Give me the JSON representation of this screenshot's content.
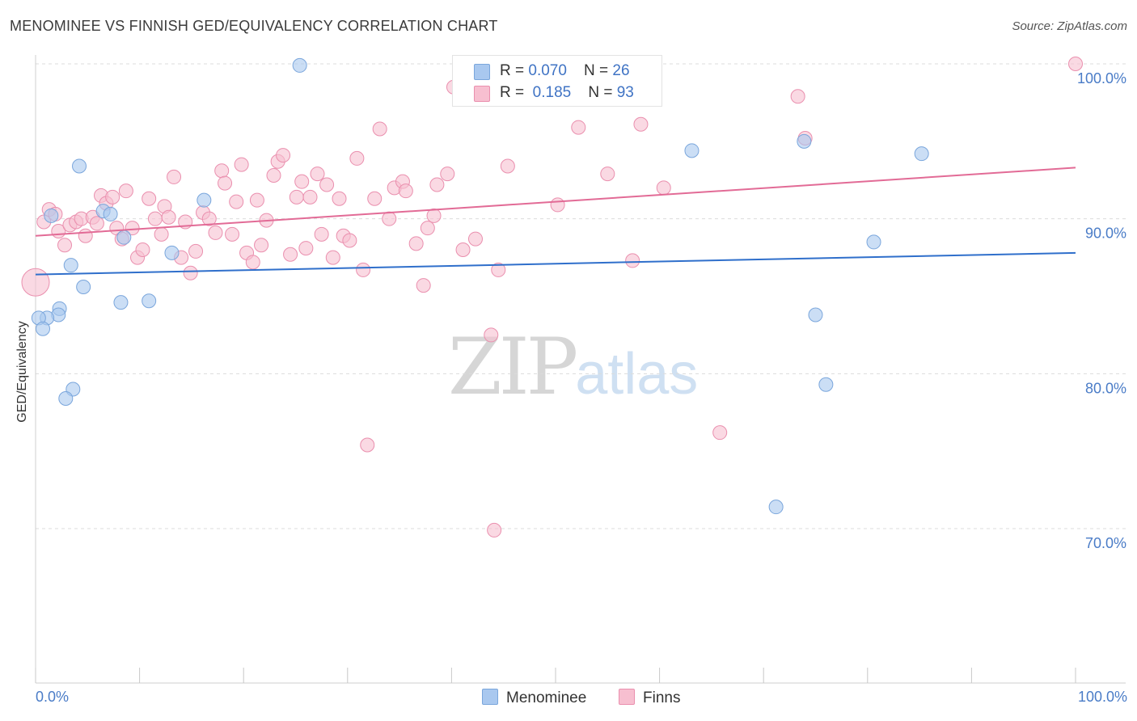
{
  "chart_data": {
    "type": "scatter",
    "title": "MENOMINEE VS FINNISH GED/EQUIVALENCY CORRELATION CHART",
    "source": "Source: ZipAtlas.com",
    "xlabel": "",
    "ylabel": "GED/Equivalency",
    "xlim": [
      0,
      100
    ],
    "ylim": [
      60,
      101.5
    ],
    "x_tick_labels": {
      "min": "0.0%",
      "max": "100.0%"
    },
    "y_ticks": [
      {
        "value": 100,
        "label": "100.0%"
      },
      {
        "value": 90,
        "label": "90.0%"
      },
      {
        "value": 80,
        "label": "80.0%"
      },
      {
        "value": 70,
        "label": "70.0%"
      }
    ],
    "grid": true,
    "watermark": {
      "zip": "ZIP",
      "atlas": "atlas"
    },
    "series": [
      {
        "name": "Menominee",
        "color": "#a9c8ef",
        "stroke": "#7aa6dc",
        "line_color": "#2f6fcb",
        "R": "0.070",
        "N": "26",
        "trend": [
          [
            0,
            86.4
          ],
          [
            100,
            87.8
          ]
        ],
        "points": [
          [
            25.4,
            99.9
          ],
          [
            4.2,
            93.4
          ],
          [
            16.2,
            91.2
          ],
          [
            6.5,
            90.5
          ],
          [
            7.2,
            90.3
          ],
          [
            1.5,
            90.2
          ],
          [
            8.5,
            88.8
          ],
          [
            13.1,
            87.8
          ],
          [
            3.4,
            87.0
          ],
          [
            4.6,
            85.6
          ],
          [
            8.2,
            84.6
          ],
          [
            10.9,
            84.7
          ],
          [
            2.3,
            84.2
          ],
          [
            2.2,
            83.8
          ],
          [
            1.1,
            83.6
          ],
          [
            0.3,
            83.6
          ],
          [
            0.7,
            82.9
          ],
          [
            3.6,
            79.0
          ],
          [
            2.9,
            78.4
          ],
          [
            63.1,
            94.4
          ],
          [
            73.9,
            95.0
          ],
          [
            85.2,
            94.2
          ],
          [
            80.6,
            88.5
          ],
          [
            75.0,
            83.8
          ],
          [
            76.0,
            79.3
          ],
          [
            71.2,
            71.4
          ]
        ]
      },
      {
        "name": "Finns",
        "color": "#f7bfd0",
        "stroke": "#ea8fae",
        "line_color": "#e26b96",
        "R": "0.185",
        "N": "93",
        "trend": [
          [
            0,
            88.9
          ],
          [
            100,
            93.3
          ]
        ],
        "points": [
          [
            0.0,
            85.9
          ],
          [
            1.3,
            90.6
          ],
          [
            1.9,
            90.3
          ],
          [
            0.8,
            89.8
          ],
          [
            2.2,
            89.2
          ],
          [
            2.8,
            88.3
          ],
          [
            3.3,
            89.6
          ],
          [
            3.9,
            89.8
          ],
          [
            4.4,
            90.0
          ],
          [
            4.8,
            88.9
          ],
          [
            5.5,
            90.1
          ],
          [
            5.9,
            89.7
          ],
          [
            6.3,
            91.5
          ],
          [
            6.8,
            91.0
          ],
          [
            7.4,
            91.4
          ],
          [
            7.8,
            89.4
          ],
          [
            8.3,
            88.7
          ],
          [
            8.7,
            91.8
          ],
          [
            9.3,
            89.4
          ],
          [
            9.8,
            87.5
          ],
          [
            10.3,
            88.0
          ],
          [
            10.9,
            91.3
          ],
          [
            11.5,
            90.0
          ],
          [
            12.1,
            89.0
          ],
          [
            12.4,
            90.8
          ],
          [
            12.8,
            90.1
          ],
          [
            13.3,
            92.7
          ],
          [
            14.0,
            87.5
          ],
          [
            14.4,
            89.8
          ],
          [
            14.9,
            86.5
          ],
          [
            15.4,
            87.9
          ],
          [
            16.1,
            90.4
          ],
          [
            16.7,
            90.0
          ],
          [
            17.3,
            89.1
          ],
          [
            17.9,
            93.1
          ],
          [
            18.2,
            92.3
          ],
          [
            18.9,
            89.0
          ],
          [
            19.3,
            91.1
          ],
          [
            19.8,
            93.5
          ],
          [
            20.3,
            87.8
          ],
          [
            20.9,
            87.2
          ],
          [
            21.3,
            91.2
          ],
          [
            21.7,
            88.3
          ],
          [
            22.2,
            89.9
          ],
          [
            22.9,
            92.8
          ],
          [
            23.3,
            93.7
          ],
          [
            23.8,
            94.1
          ],
          [
            24.5,
            87.7
          ],
          [
            25.1,
            91.4
          ],
          [
            25.6,
            92.4
          ],
          [
            26.0,
            88.1
          ],
          [
            26.4,
            91.4
          ],
          [
            27.1,
            92.9
          ],
          [
            27.5,
            89.0
          ],
          [
            28.0,
            92.2
          ],
          [
            28.6,
            87.5
          ],
          [
            29.2,
            91.3
          ],
          [
            29.6,
            88.9
          ],
          [
            30.2,
            88.6
          ],
          [
            30.9,
            93.9
          ],
          [
            31.5,
            86.7
          ],
          [
            31.9,
            75.4
          ],
          [
            32.6,
            91.3
          ],
          [
            33.1,
            95.8
          ],
          [
            34.0,
            90.0
          ],
          [
            34.5,
            92.0
          ],
          [
            35.3,
            92.4
          ],
          [
            35.6,
            91.8
          ],
          [
            36.6,
            88.4
          ],
          [
            37.3,
            85.7
          ],
          [
            37.7,
            89.4
          ],
          [
            38.3,
            90.2
          ],
          [
            38.6,
            92.2
          ],
          [
            39.6,
            92.9
          ],
          [
            40.2,
            98.5
          ],
          [
            41.1,
            88.0
          ],
          [
            42.3,
            88.7
          ],
          [
            43.8,
            82.5
          ],
          [
            44.1,
            69.9
          ],
          [
            44.5,
            86.7
          ],
          [
            45.4,
            93.4
          ],
          [
            50.2,
            90.9
          ],
          [
            52.2,
            95.9
          ],
          [
            55.0,
            92.9
          ],
          [
            56.6,
            100.0
          ],
          [
            57.4,
            87.3
          ],
          [
            58.2,
            96.1
          ],
          [
            59.0,
            100.0
          ],
          [
            60.4,
            92.0
          ],
          [
            65.8,
            76.2
          ],
          [
            74.0,
            95.2
          ],
          [
            100.0,
            100.0
          ],
          [
            73.3,
            97.9
          ]
        ]
      }
    ]
  }
}
